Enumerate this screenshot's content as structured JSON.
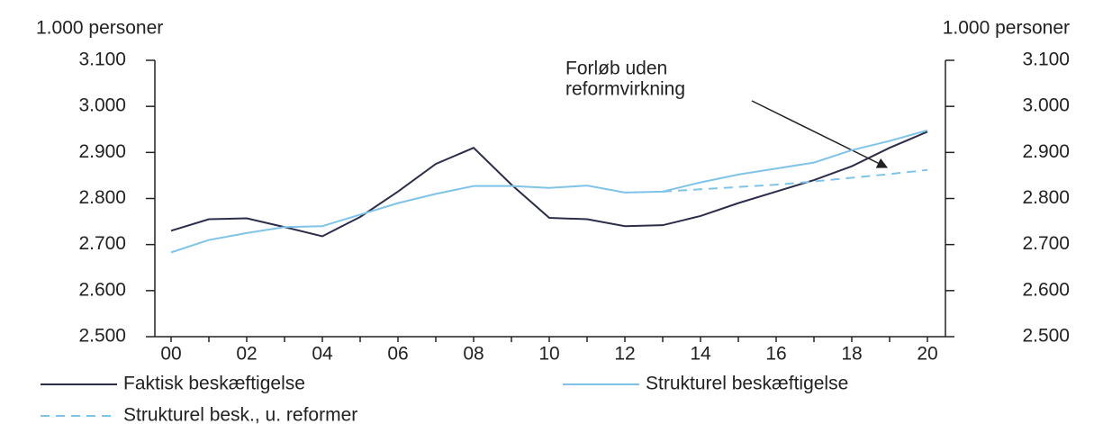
{
  "chart_data": {
    "type": "line",
    "y_label": "1.000 personer",
    "y2_label": "1.000 personer",
    "annotation": [
      "Forløb uden",
      "reformvirkning"
    ],
    "categories": [
      "00",
      null,
      "02",
      null,
      "04",
      null,
      "06",
      null,
      "08",
      null,
      "10",
      null,
      "12",
      null,
      "14",
      null,
      "16",
      null,
      "18",
      null,
      "20"
    ],
    "series": [
      {
        "name": "Faktisk beskæftigelse",
        "color": "#2b2d4a",
        "dash": false,
        "values": [
          2730,
          2755,
          2757,
          2738,
          2718,
          2760,
          2815,
          2875,
          2910,
          2830,
          2758,
          2755,
          2740,
          2742,
          2762,
          2790,
          2815,
          2840,
          2870,
          2910,
          2945
        ]
      },
      {
        "name": "Strukturel beskæftigelse",
        "color": "#7fc4e8",
        "dash": false,
        "values": [
          2683,
          2710,
          2725,
          2738,
          2740,
          2765,
          2790,
          2810,
          2827,
          2827,
          2823,
          2828,
          2813,
          2815,
          2835,
          2852,
          2865,
          2878,
          2905,
          2925,
          2948
        ]
      },
      {
        "name": "Strukturel besk., u. reformer",
        "color": "#7fc4e8",
        "dash": true,
        "values": [
          null,
          null,
          null,
          null,
          null,
          null,
          null,
          null,
          null,
          null,
          null,
          null,
          null,
          2815,
          2820,
          2825,
          2830,
          2837,
          2845,
          2853,
          2862
        ]
      }
    ],
    "ylim": [
      2500,
      3100
    ],
    "yticks": [
      {
        "value": 2500,
        "label": "2.500"
      },
      {
        "value": 2600,
        "label": "2.600"
      },
      {
        "value": 2700,
        "label": "2.700"
      },
      {
        "value": 2800,
        "label": "2.800"
      },
      {
        "value": 2900,
        "label": "2.900"
      },
      {
        "value": 3000,
        "label": "3.000"
      },
      {
        "value": 3100,
        "label": "3.100"
      }
    ],
    "y2lim": [
      2500,
      3100
    ],
    "y2ticks": [
      {
        "value": 2500,
        "label": "2.500"
      },
      {
        "value": 2600,
        "label": "2.600"
      },
      {
        "value": 2700,
        "label": "2.700"
      },
      {
        "value": 2800,
        "label": "2.800"
      },
      {
        "value": 2900,
        "label": "2.900"
      },
      {
        "value": 3000,
        "label": "3.000"
      },
      {
        "value": 3100,
        "label": "3.100"
      }
    ],
    "grid": false
  }
}
